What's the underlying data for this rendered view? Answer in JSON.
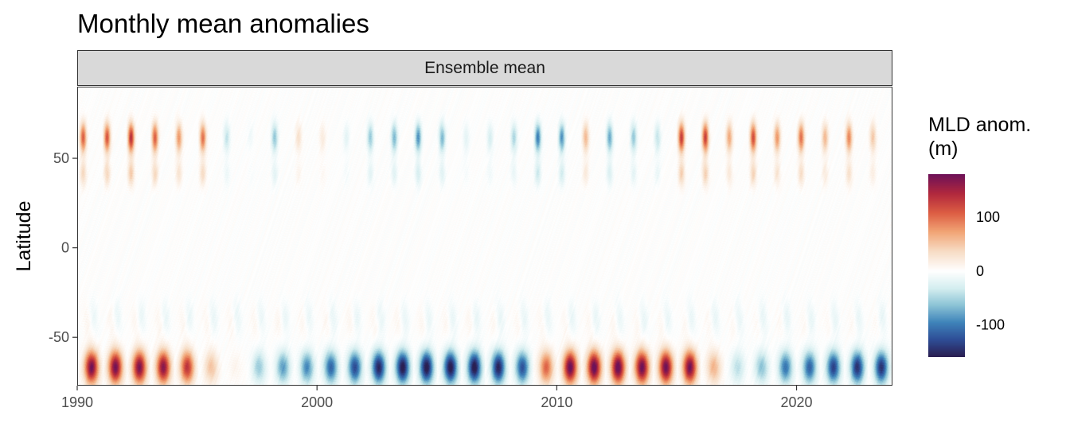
{
  "chart_data": {
    "type": "heatmap",
    "title": "Monthly mean anomalies",
    "facet": "Ensemble mean",
    "xlabel": "",
    "ylabel": "Latitude",
    "xlim": [
      1990,
      2024
    ],
    "ylim": [
      -77,
      90
    ],
    "x_ticks": [
      {
        "value": 1990,
        "label": "1990"
      },
      {
        "value": 2000,
        "label": "2000"
      },
      {
        "value": 2010,
        "label": "2010"
      },
      {
        "value": 2020,
        "label": "2020"
      }
    ],
    "y_ticks": [
      {
        "value": 50,
        "label": "50"
      },
      {
        "value": 0,
        "label": "0"
      },
      {
        "value": -50,
        "label": "-50"
      }
    ],
    "legend": {
      "title_line1": "MLD anom.",
      "title_line2": "(m)",
      "range": [
        -160,
        180
      ],
      "ticks": [
        {
          "value": 100,
          "label": "100"
        },
        {
          "value": 0,
          "label": "0"
        },
        {
          "value": -100,
          "label": "-100"
        }
      ],
      "colors": [
        "#2a1f52",
        "#2e4e97",
        "#3f84ba",
        "#8cc4d6",
        "#d6eef0",
        "#ffffff",
        "#f7ddc6",
        "#f2a677",
        "#dd5e43",
        "#b2283d",
        "#6e1258"
      ]
    },
    "southern_band_yearly": [
      {
        "year": 1990,
        "value": 170
      },
      {
        "year": 1991,
        "value": 170
      },
      {
        "year": 1992,
        "value": 165
      },
      {
        "year": 1993,
        "value": 160
      },
      {
        "year": 1994,
        "value": 130
      },
      {
        "year": 1995,
        "value": 50
      },
      {
        "year": 1996,
        "value": 10
      },
      {
        "year": 1997,
        "value": -55
      },
      {
        "year": 1998,
        "value": -80
      },
      {
        "year": 1999,
        "value": -90
      },
      {
        "year": 2000,
        "value": -110
      },
      {
        "year": 2001,
        "value": -125
      },
      {
        "year": 2002,
        "value": -150
      },
      {
        "year": 2003,
        "value": -160
      },
      {
        "year": 2004,
        "value": -160
      },
      {
        "year": 2005,
        "value": -160
      },
      {
        "year": 2006,
        "value": -160
      },
      {
        "year": 2007,
        "value": -150
      },
      {
        "year": 2008,
        "value": -120
      },
      {
        "year": 2009,
        "value": 100
      },
      {
        "year": 2010,
        "value": 175
      },
      {
        "year": 2011,
        "value": 180
      },
      {
        "year": 2012,
        "value": 180
      },
      {
        "year": 2013,
        "value": 175
      },
      {
        "year": 2014,
        "value": 175
      },
      {
        "year": 2015,
        "value": 170
      },
      {
        "year": 2016,
        "value": 60
      },
      {
        "year": 2017,
        "value": -40
      },
      {
        "year": 2018,
        "value": -60
      },
      {
        "year": 2019,
        "value": -100
      },
      {
        "year": 2020,
        "value": -110
      },
      {
        "year": 2021,
        "value": -130
      },
      {
        "year": 2022,
        "value": -140
      },
      {
        "year": 2023,
        "value": -140
      }
    ],
    "northern_band_yearly": [
      {
        "year": 1990,
        "value": 110
      },
      {
        "year": 1991,
        "value": 115
      },
      {
        "year": 1992,
        "value": 140
      },
      {
        "year": 1993,
        "value": 110
      },
      {
        "year": 1994,
        "value": 80
      },
      {
        "year": 1995,
        "value": 100
      },
      {
        "year": 1996,
        "value": -40
      },
      {
        "year": 1997,
        "value": -10
      },
      {
        "year": 1998,
        "value": -60
      },
      {
        "year": 1999,
        "value": 30
      },
      {
        "year": 2000,
        "value": 20
      },
      {
        "year": 2001,
        "value": -20
      },
      {
        "year": 2002,
        "value": -60
      },
      {
        "year": 2003,
        "value": -70
      },
      {
        "year": 2004,
        "value": -90
      },
      {
        "year": 2005,
        "value": -70
      },
      {
        "year": 2006,
        "value": -20
      },
      {
        "year": 2007,
        "value": -30
      },
      {
        "year": 2008,
        "value": -50
      },
      {
        "year": 2009,
        "value": -100
      },
      {
        "year": 2010,
        "value": -90
      },
      {
        "year": 2011,
        "value": 60
      },
      {
        "year": 2012,
        "value": -80
      },
      {
        "year": 2013,
        "value": -60
      },
      {
        "year": 2014,
        "value": -40
      },
      {
        "year": 2015,
        "value": 130
      },
      {
        "year": 2016,
        "value": 130
      },
      {
        "year": 2017,
        "value": 70
      },
      {
        "year": 2018,
        "value": 120
      },
      {
        "year": 2019,
        "value": 80
      },
      {
        "year": 2020,
        "value": 100
      },
      {
        "year": 2021,
        "value": 60
      },
      {
        "year": 2022,
        "value": 90
      },
      {
        "year": 2023,
        "value": 50
      }
    ]
  }
}
